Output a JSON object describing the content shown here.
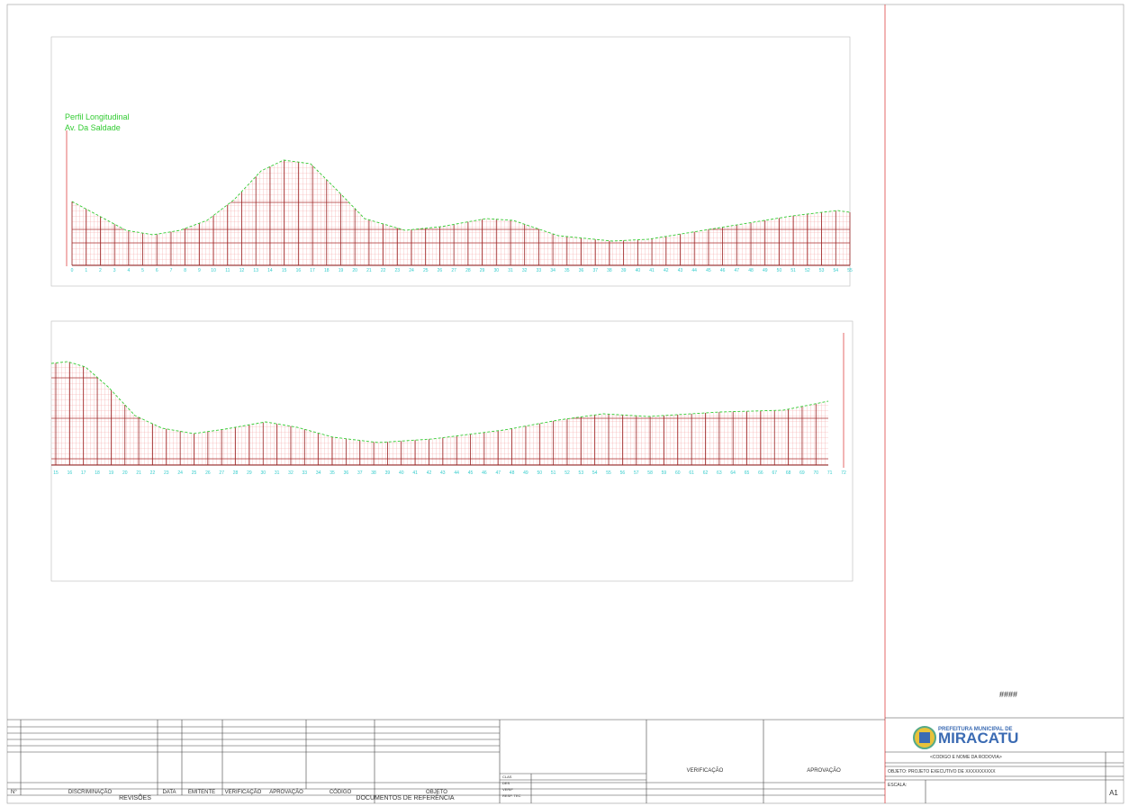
{
  "profile_top": {
    "title": "Perfil Longitudinal",
    "subtitle": "Av. Da Saldade",
    "stations": [
      "0",
      "1",
      "2",
      "3",
      "4",
      "5",
      "6",
      "7",
      "8",
      "9",
      "10",
      "11",
      "12",
      "13",
      "14",
      "15",
      "16",
      "17",
      "18",
      "19",
      "20",
      "21",
      "22",
      "23",
      "24",
      "25",
      "26",
      "27",
      "28",
      "29",
      "30",
      "31",
      "32",
      "33",
      "34",
      "35",
      "36",
      "37",
      "38",
      "39",
      "40",
      "41",
      "42",
      "43",
      "44",
      "45",
      "46",
      "47",
      "48",
      "49",
      "50",
      "51",
      "52",
      "53",
      "54",
      "55"
    ]
  },
  "profile_bottom": {
    "stations": [
      "15",
      "16",
      "17",
      "18",
      "19",
      "20",
      "21",
      "22",
      "23",
      "24",
      "25",
      "26",
      "27",
      "28",
      "29",
      "30",
      "31",
      "32",
      "33",
      "34",
      "35",
      "36",
      "37",
      "38",
      "39",
      "40",
      "41",
      "42",
      "43",
      "44",
      "45",
      "46",
      "47",
      "48",
      "49",
      "50",
      "51",
      "52",
      "53",
      "54",
      "55",
      "56",
      "57",
      "58",
      "59",
      "60",
      "61",
      "62",
      "63",
      "64",
      "65",
      "66",
      "67",
      "68",
      "69",
      "70",
      "71",
      "72"
    ]
  },
  "title_block": {
    "mark": "####",
    "municipality_line": "PREFEITURA MUNICIPAL DE",
    "municipality": "MIRACATU",
    "road": "<CODIGO E NOME DA RODOVIA>",
    "object": "OBJETO: PROJETO EXECUTIVO DE XXXXXXXXXX",
    "scale": "ESCALA:",
    "sheet": "A1",
    "verification": "VERIFICAÇÃO",
    "approval": "APROVAÇÃO",
    "roles": [
      "CLAS",
      "DES",
      "VERIF",
      "RESP. TEC"
    ]
  },
  "revisions": {
    "headers": [
      "N°",
      "DISCRIMINAÇÃO",
      "DATA",
      "EMITENTE",
      "VERIFICAÇÃO",
      "APROVAÇÃO",
      "CÓDIGO",
      "OBJETO"
    ],
    "title": "REVISÕES",
    "references_title": "DOCUMENTOS DE REFERÊNCIA"
  }
}
